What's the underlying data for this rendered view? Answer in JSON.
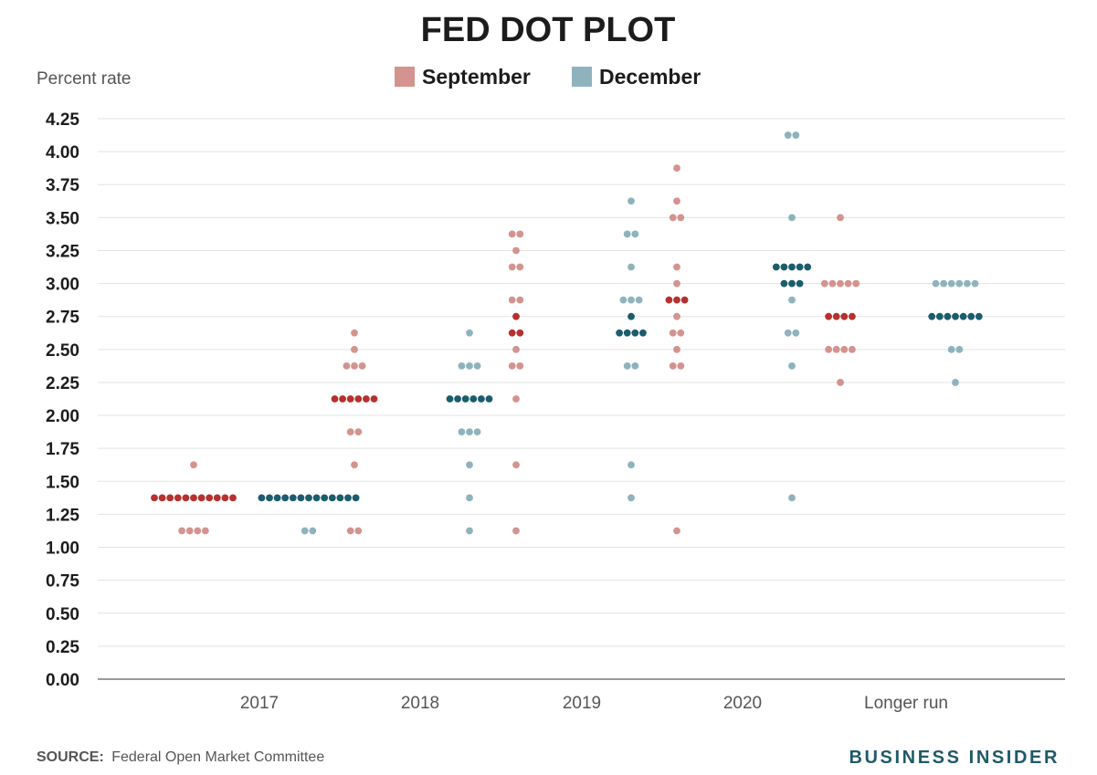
{
  "chart_data": {
    "type": "scatter",
    "title": "FED DOT PLOT",
    "ylabel": "Percent rate",
    "ylim": [
      0,
      4.25
    ],
    "yticks": [
      "0.00",
      "0.25",
      "0.50",
      "0.75",
      "1.00",
      "1.25",
      "1.50",
      "1.75",
      "2.00",
      "2.25",
      "2.50",
      "2.75",
      "3.00",
      "3.25",
      "3.50",
      "3.75",
      "4.00",
      "4.25"
    ],
    "categories": [
      "2017",
      "2018",
      "2019",
      "2020",
      "Longer run"
    ],
    "legend": {
      "placement": "top-center"
    },
    "grid": true,
    "series": [
      {
        "name": "September",
        "color": "#d4938f",
        "median_color": "#b5312f",
        "points": [
          {
            "category": "2017",
            "y": 1.625,
            "count": 1
          },
          {
            "category": "2017",
            "y": 1.375,
            "count": 11,
            "median": true
          },
          {
            "category": "2017",
            "y": 1.125,
            "count": 4
          },
          {
            "category": "2018",
            "y": 2.625,
            "count": 1
          },
          {
            "category": "2018",
            "y": 2.5,
            "count": 1
          },
          {
            "category": "2018",
            "y": 2.375,
            "count": 3
          },
          {
            "category": "2018",
            "y": 2.125,
            "count": 6,
            "median": true
          },
          {
            "category": "2018",
            "y": 1.875,
            "count": 2
          },
          {
            "category": "2018",
            "y": 1.625,
            "count": 1
          },
          {
            "category": "2018",
            "y": 1.125,
            "count": 2
          },
          {
            "category": "2019",
            "y": 3.375,
            "count": 2
          },
          {
            "category": "2019",
            "y": 3.25,
            "count": 1
          },
          {
            "category": "2019",
            "y": 3.125,
            "count": 2
          },
          {
            "category": "2019",
            "y": 2.875,
            "count": 2
          },
          {
            "category": "2019",
            "y": 2.75,
            "count": 1,
            "median": true
          },
          {
            "category": "2019",
            "y": 2.625,
            "count": 2,
            "median": true
          },
          {
            "category": "2019",
            "y": 2.5,
            "count": 1
          },
          {
            "category": "2019",
            "y": 2.375,
            "count": 2
          },
          {
            "category": "2019",
            "y": 2.125,
            "count": 1
          },
          {
            "category": "2019",
            "y": 1.625,
            "count": 1
          },
          {
            "category": "2019",
            "y": 1.125,
            "count": 1
          },
          {
            "category": "2020",
            "y": 3.875,
            "count": 1
          },
          {
            "category": "2020",
            "y": 3.625,
            "count": 1
          },
          {
            "category": "2020",
            "y": 3.5,
            "count": 2
          },
          {
            "category": "2020",
            "y": 3.125,
            "count": 1
          },
          {
            "category": "2020",
            "y": 3.0,
            "count": 1
          },
          {
            "category": "2020",
            "y": 2.875,
            "count": 3,
            "median": true
          },
          {
            "category": "2020",
            "y": 2.75,
            "count": 1
          },
          {
            "category": "2020",
            "y": 2.625,
            "count": 2
          },
          {
            "category": "2020",
            "y": 2.5,
            "count": 1
          },
          {
            "category": "2020",
            "y": 2.375,
            "count": 2
          },
          {
            "category": "2020",
            "y": 1.125,
            "count": 1
          },
          {
            "category": "Longer run",
            "y": 3.5,
            "count": 1
          },
          {
            "category": "Longer run",
            "y": 3.0,
            "count": 5
          },
          {
            "category": "Longer run",
            "y": 2.75,
            "count": 4,
            "median": true
          },
          {
            "category": "Longer run",
            "y": 2.5,
            "count": 4
          },
          {
            "category": "Longer run",
            "y": 2.25,
            "count": 1
          }
        ]
      },
      {
        "name": "December",
        "color": "#8fb3bd",
        "median_color": "#1b5c6e",
        "points": [
          {
            "category": "2017",
            "y": 1.375,
            "count": 13,
            "median": true
          },
          {
            "category": "2017",
            "y": 1.125,
            "count": 2
          },
          {
            "category": "2018",
            "y": 2.625,
            "count": 1
          },
          {
            "category": "2018",
            "y": 2.375,
            "count": 3
          },
          {
            "category": "2018",
            "y": 2.125,
            "count": 6,
            "median": true
          },
          {
            "category": "2018",
            "y": 1.875,
            "count": 3
          },
          {
            "category": "2018",
            "y": 1.625,
            "count": 1
          },
          {
            "category": "2018",
            "y": 1.375,
            "count": 1
          },
          {
            "category": "2018",
            "y": 1.125,
            "count": 1
          },
          {
            "category": "2019",
            "y": 3.625,
            "count": 1
          },
          {
            "category": "2019",
            "y": 3.375,
            "count": 2
          },
          {
            "category": "2019",
            "y": 3.125,
            "count": 1
          },
          {
            "category": "2019",
            "y": 2.875,
            "count": 3
          },
          {
            "category": "2019",
            "y": 2.75,
            "count": 1,
            "median": true
          },
          {
            "category": "2019",
            "y": 2.625,
            "count": 4,
            "median": true
          },
          {
            "category": "2019",
            "y": 2.375,
            "count": 2
          },
          {
            "category": "2019",
            "y": 1.625,
            "count": 1
          },
          {
            "category": "2019",
            "y": 1.375,
            "count": 1
          },
          {
            "category": "2020",
            "y": 4.125,
            "count": 2
          },
          {
            "category": "2020",
            "y": 3.5,
            "count": 1
          },
          {
            "category": "2020",
            "y": 3.125,
            "count": 5,
            "median": true
          },
          {
            "category": "2020",
            "y": 3.0,
            "count": 3,
            "median": true
          },
          {
            "category": "2020",
            "y": 2.875,
            "count": 1
          },
          {
            "category": "2020",
            "y": 2.625,
            "count": 2
          },
          {
            "category": "2020",
            "y": 2.375,
            "count": 1
          },
          {
            "category": "2020",
            "y": 1.375,
            "count": 1
          },
          {
            "category": "Longer run",
            "y": 3.0,
            "count": 6
          },
          {
            "category": "Longer run",
            "y": 2.75,
            "count": 7,
            "median": true
          },
          {
            "category": "Longer run",
            "y": 2.5,
            "count": 2
          },
          {
            "category": "Longer run",
            "y": 2.25,
            "count": 1
          }
        ]
      }
    ]
  },
  "footer": {
    "source_label": "SOURCE:",
    "source_text": "Federal Open Market Committee",
    "brand": "BUSINESS INSIDER"
  }
}
